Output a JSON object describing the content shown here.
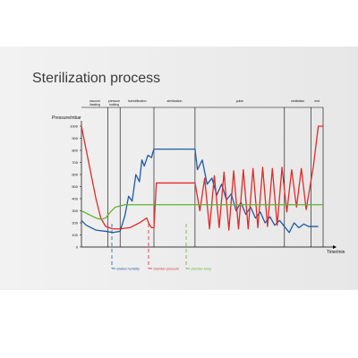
{
  "chart_data": {
    "type": "line",
    "title": "Sterilization process",
    "ylabel": "Pressure/mbar",
    "xlabel": "Time/min",
    "ylim": [
      0,
      1000
    ],
    "yticks": [
      0,
      100,
      200,
      300,
      400,
      500,
      600,
      700,
      800,
      900,
      1000
    ],
    "xlim": [
      0,
      100
    ],
    "grid": false,
    "phases": [
      {
        "label": "vacuum /heating",
        "start": 0,
        "end": 11
      },
      {
        "label": "pressure holding",
        "start": 11,
        "end": 16
      },
      {
        "label": "humidification",
        "start": 16,
        "end": 30
      },
      {
        "label": "sterilization",
        "start": 30,
        "end": 47
      },
      {
        "label": "pulse",
        "start": 47,
        "end": 84
      },
      {
        "label": "ventilation",
        "start": 84,
        "end": 95
      },
      {
        "label": "end",
        "start": 95,
        "end": 100
      }
    ],
    "series": [
      {
        "name": "relative humidity",
        "color": "#1e5aa8",
        "x": [
          0,
          2,
          6,
          10,
          13,
          16,
          18,
          19.5,
          21,
          22.5,
          24,
          25,
          26,
          27.5,
          29,
          29.5,
          30,
          32,
          36,
          40,
          44,
          47,
          48,
          50,
          52,
          54,
          56,
          58,
          60,
          62,
          64,
          66,
          68,
          70,
          72,
          74,
          76,
          78,
          80,
          82,
          84,
          86,
          88,
          90,
          92,
          94,
          96,
          98
        ],
        "y": [
          220,
          180,
          140,
          130,
          120,
          130,
          260,
          420,
          380,
          600,
          540,
          720,
          670,
          760,
          740,
          780,
          810,
          810,
          810,
          810,
          810,
          810,
          640,
          720,
          520,
          570,
          430,
          520,
          390,
          440,
          300,
          370,
          270,
          330,
          240,
          290,
          200,
          250,
          180,
          220,
          170,
          120,
          200,
          160,
          190,
          170,
          170,
          170
        ]
      },
      {
        "name": "chamber pressure",
        "color": "#e12a26",
        "x": [
          0,
          3,
          6,
          8,
          10,
          13,
          16,
          20,
          24,
          27,
          28,
          29,
          30,
          31,
          47,
          49,
          51,
          53,
          55,
          57,
          59,
          61,
          63,
          65,
          67,
          69,
          71,
          73,
          75,
          77,
          79,
          81,
          83,
          85,
          87,
          89,
          91,
          93,
          96,
          98,
          100
        ],
        "y": [
          1000,
          700,
          400,
          240,
          170,
          150,
          150,
          160,
          200,
          240,
          190,
          160,
          160,
          530,
          530,
          300,
          570,
          150,
          590,
          160,
          620,
          140,
          630,
          150,
          640,
          150,
          650,
          160,
          660,
          170,
          650,
          180,
          660,
          290,
          640,
          330,
          650,
          310,
          670,
          1000,
          1000
        ]
      },
      {
        "name": "chamber temp.",
        "color": "#5fb32f",
        "x": [
          0,
          3,
          6,
          8,
          10,
          12,
          14,
          16,
          18,
          100
        ],
        "y": [
          300,
          270,
          240,
          230,
          240,
          290,
          330,
          340,
          350,
          350
        ]
      }
    ],
    "legend": [
      {
        "name": "relative humidity",
        "color": "#1e5aa8"
      },
      {
        "name": "chamber pressure",
        "color": "#e12a26"
      },
      {
        "name": "chamber temp.",
        "color": "#5fb32f"
      }
    ],
    "legend_position": "bottom"
  }
}
